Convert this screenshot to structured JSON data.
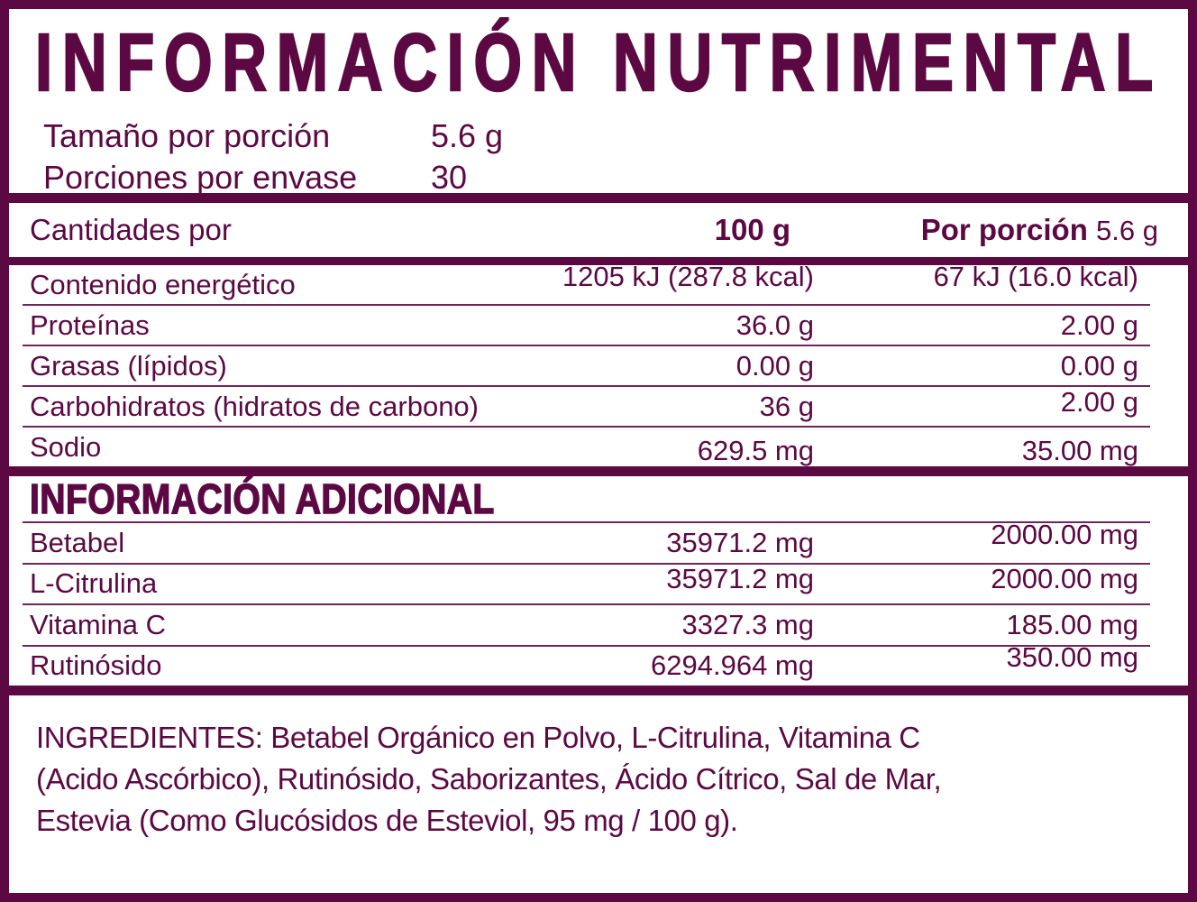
{
  "colors": {
    "primary": "#5c0843",
    "background": "#ffffff"
  },
  "header": {
    "title": "INFORMACIÓN NUTRIMENTAL",
    "serving_rows": [
      {
        "label": "Tamaño por porción",
        "value": "5.6 g"
      },
      {
        "label": "Porciones por envase",
        "value": "30"
      }
    ]
  },
  "nutrition_table": {
    "header": {
      "label": "Cantidades por",
      "col_100g": "100 g",
      "col_portion_label": "Por porción",
      "col_portion_value": "5.6 g"
    },
    "rows": [
      {
        "label": "Contenido energético",
        "per_100g": "1205 kJ (287.8 kcal)",
        "per_portion": "67 kJ (16.0 kcal)"
      },
      {
        "label": "Proteínas",
        "per_100g": "36.0 g",
        "per_portion": "2.00 g"
      },
      {
        "label": "Grasas (lípidos)",
        "per_100g": "0.00 g",
        "per_portion": "0.00 g"
      },
      {
        "label": "Carbohidratos (hidratos de carbono)",
        "per_100g": "36 g",
        "per_portion": "2.00 g"
      },
      {
        "label": "Sodio",
        "per_100g": "629.5 mg",
        "per_portion": "35.00 mg"
      }
    ]
  },
  "additional_info": {
    "title": "INFORMACIÓN ADICIONAL",
    "rows": [
      {
        "label": "Betabel",
        "per_100g": "35971.2 mg",
        "per_portion": "2000.00 mg"
      },
      {
        "label": "L-Citrulina",
        "per_100g": "35971.2 mg",
        "per_portion": "2000.00 mg"
      },
      {
        "label": "Vitamina C",
        "per_100g": "3327.3 mg",
        "per_portion": "185.00 mg"
      },
      {
        "label": "Rutinósido",
        "per_100g": "6294.964 mg",
        "per_portion": "350.00 mg"
      }
    ]
  },
  "ingredients": {
    "text": "INGREDIENTES: Betabel Orgánico en Polvo, L-Citrulina, Vitamina C\n(Acido Ascórbico), Rutinósido, Saborizantes, Ácido Cítrico, Sal de Mar,\nEstevia (Como Glucósidos de Esteviol, 95 mg / 100 g)."
  }
}
